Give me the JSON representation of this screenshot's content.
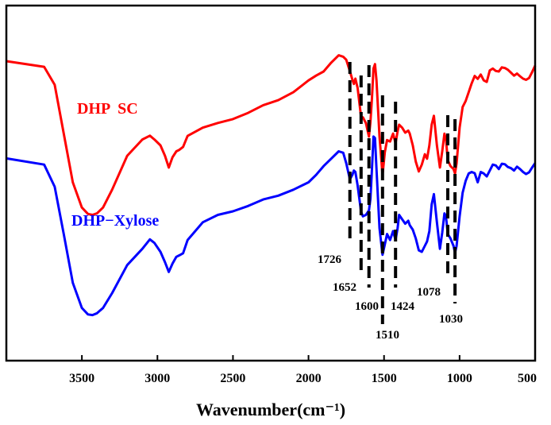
{
  "chart_data": {
    "type": "line",
    "title": "",
    "xlabel": "Wavenumber(cm⁻¹)",
    "ylabel": "",
    "xlim": [
      4000,
      500
    ],
    "x_reversed": true,
    "ylim": [
      0,
      100
    ],
    "x_ticks": [
      3500,
      3000,
      2500,
      2000,
      1500,
      1000,
      500
    ],
    "x_tick_labels": [
      "3500",
      "3000",
      "2500",
      "2000",
      "1500",
      "1000",
      "500"
    ],
    "grid": false,
    "series": [
      {
        "name": "DHP  SC",
        "label": "DHP  SC",
        "color": "#ff0000",
        "x": [
          4000,
          3750,
          3680,
          3620,
          3560,
          3500,
          3460,
          3430,
          3400,
          3360,
          3300,
          3200,
          3100,
          3050,
          3020,
          2980,
          2950,
          2925,
          2900,
          2875,
          2855,
          2830,
          2800,
          2700,
          2600,
          2500,
          2400,
          2300,
          2200,
          2100,
          2000,
          1950,
          1900,
          1850,
          1800,
          1770,
          1750,
          1726,
          1710,
          1700,
          1690,
          1675,
          1652,
          1640,
          1620,
          1600,
          1590,
          1580,
          1570,
          1560,
          1550,
          1530,
          1510,
          1495,
          1480,
          1460,
          1440,
          1424,
          1410,
          1400,
          1380,
          1360,
          1340,
          1330,
          1310,
          1290,
          1270,
          1250,
          1230,
          1215,
          1200,
          1185,
          1170,
          1150,
          1130,
          1115,
          1100,
          1090,
          1078,
          1060,
          1040,
          1030,
          1020,
          1000,
          980,
          960,
          940,
          920,
          900,
          880,
          860,
          840,
          820,
          800,
          780,
          760,
          740,
          720,
          700,
          680,
          660,
          640,
          620,
          600,
          580,
          560,
          540,
          520,
          500
        ],
        "y": [
          96.5,
          94.6,
          88.5,
          72,
          55.5,
          47,
          44.8,
          44.5,
          45,
          47,
          53,
          64.5,
          70,
          71.3,
          70,
          68,
          64.5,
          60.5,
          64,
          66,
          66.5,
          67.5,
          71.2,
          74,
          75.6,
          76.9,
          79,
          81.6,
          83.3,
          86,
          90,
          91.6,
          93,
          96,
          98.5,
          98,
          97,
          93.1,
          90.3,
          88.8,
          90.6,
          87.5,
          77.6,
          77.5,
          75.5,
          71,
          76,
          84,
          94,
          95.5,
          90,
          71,
          58,
          65.7,
          69.8,
          69.3,
          72,
          68.7,
          72.8,
          75,
          74,
          72.3,
          73,
          72,
          68,
          62.5,
          59.2,
          61.5,
          65,
          63.5,
          68,
          75,
          78,
          68,
          60.5,
          66,
          72,
          70,
          63,
          61,
          60,
          58.5,
          62,
          74,
          81,
          83,
          86,
          89,
          91.5,
          90.5,
          92,
          90,
          89.5,
          93.4,
          94,
          93.2,
          93,
          94.4,
          94.2,
          93.6,
          92.6,
          91.6,
          92.3,
          91.4,
          90.6,
          90.2,
          90.8,
          92.8,
          95
        ]
      },
      {
        "name": "DHP−Xylose",
        "label": "DHP−Xylose",
        "color": "#0000ff",
        "x": [
          4000,
          3750,
          3680,
          3620,
          3560,
          3500,
          3460,
          3430,
          3400,
          3360,
          3300,
          3200,
          3100,
          3050,
          3020,
          2980,
          2950,
          2925,
          2900,
          2875,
          2855,
          2830,
          2800,
          2700,
          2600,
          2500,
          2400,
          2300,
          2200,
          2100,
          2000,
          1950,
          1900,
          1850,
          1800,
          1770,
          1750,
          1726,
          1710,
          1700,
          1690,
          1675,
          1652,
          1640,
          1620,
          1600,
          1590,
          1580,
          1570,
          1560,
          1550,
          1530,
          1510,
          1495,
          1480,
          1460,
          1440,
          1424,
          1410,
          1400,
          1380,
          1360,
          1340,
          1330,
          1310,
          1290,
          1270,
          1250,
          1230,
          1215,
          1200,
          1185,
          1170,
          1150,
          1130,
          1115,
          1100,
          1090,
          1078,
          1060,
          1040,
          1030,
          1020,
          1000,
          980,
          960,
          940,
          920,
          900,
          880,
          860,
          840,
          820,
          800,
          780,
          760,
          740,
          720,
          700,
          680,
          660,
          640,
          620,
          600,
          580,
          560,
          540,
          520,
          500
        ],
        "y": [
          63.6,
          61.5,
          54,
          38,
          21.5,
          13,
          10.8,
          10.6,
          11.2,
          13,
          18,
          27.5,
          33,
          36.2,
          35,
          32,
          28.5,
          25.2,
          28,
          30.3,
          30.8,
          31.5,
          36,
          42,
          44.5,
          45.7,
          47.5,
          49.7,
          51,
          53,
          55.5,
          58,
          61,
          63.5,
          66,
          65.5,
          62,
          56.5,
          58,
          59.5,
          59,
          54.5,
          45.5,
          44,
          44.5,
          46,
          50,
          60,
          71,
          70.5,
          60,
          40,
          31,
          34.5,
          38,
          36,
          39,
          36,
          40,
          44.5,
          43,
          41.5,
          42.5,
          41,
          39.5,
          36.5,
          32.5,
          32,
          34,
          35.5,
          39,
          48,
          51.5,
          42,
          33,
          38.5,
          45,
          44,
          38,
          36.5,
          34,
          31.7,
          34,
          44,
          52,
          56,
          58.5,
          59,
          58.6,
          55.5,
          59,
          58.5,
          57.5,
          59.5,
          61.5,
          61.2,
          60,
          61.8,
          61.6,
          60.7,
          60.3,
          59.5,
          60.8,
          60,
          59,
          58.3,
          58.9,
          60.5,
          62
        ]
      }
    ],
    "annotations": {
      "dashed_markers": [
        1726,
        1652,
        1600,
        1510,
        1424,
        1078,
        1030
      ],
      "peak_labels": [
        {
          "text": "1726",
          "x": 1726
        },
        {
          "text": "1652",
          "x": 1652
        },
        {
          "text": "1600",
          "x": 1600
        },
        {
          "text": "1510",
          "x": 1510
        },
        {
          "text": "1424",
          "x": 1424
        },
        {
          "text": "1078",
          "x": 1078
        },
        {
          "text": "1030",
          "x": 1030
        }
      ]
    }
  }
}
